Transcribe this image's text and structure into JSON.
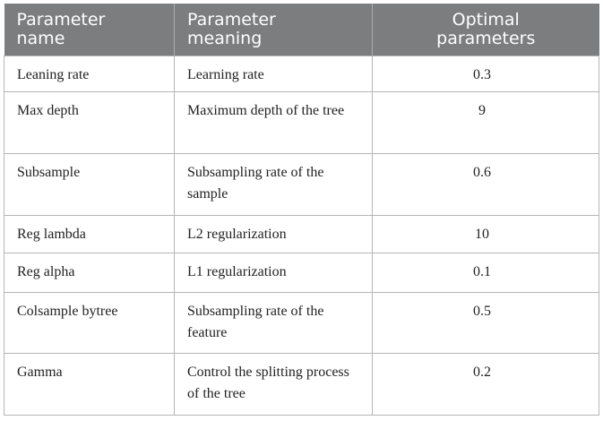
{
  "table": {
    "headers": [
      {
        "line1": "Parameter",
        "line2": "name"
      },
      {
        "line1": "Parameter",
        "line2": "meaning"
      },
      {
        "line1": "Optimal",
        "line2": "parameters"
      }
    ],
    "rows": [
      {
        "name": "Leaning rate",
        "meaning": "Learning rate",
        "value": "0.3"
      },
      {
        "name": "Max depth",
        "meaning": "Maximum depth of the tree",
        "value": "9"
      },
      {
        "name": "Subsample",
        "meaning": "Subsampling rate of the sample",
        "value": "0.6"
      },
      {
        "name": "Reg lambda",
        "meaning": "L2 regularization",
        "value": "10"
      },
      {
        "name": "Reg alpha",
        "meaning": "L1 regularization",
        "value": "0.1"
      },
      {
        "name": "Colsample bytree",
        "meaning": "Subsampling rate of the feature",
        "value": "0.5"
      },
      {
        "name": "Gamma",
        "meaning": "Control the splitting process of the tree",
        "value": "0.2"
      }
    ]
  },
  "colors": {
    "header_bg": "#7b7d7f",
    "header_text": "#ffffff",
    "border": "#b5b5b5"
  }
}
